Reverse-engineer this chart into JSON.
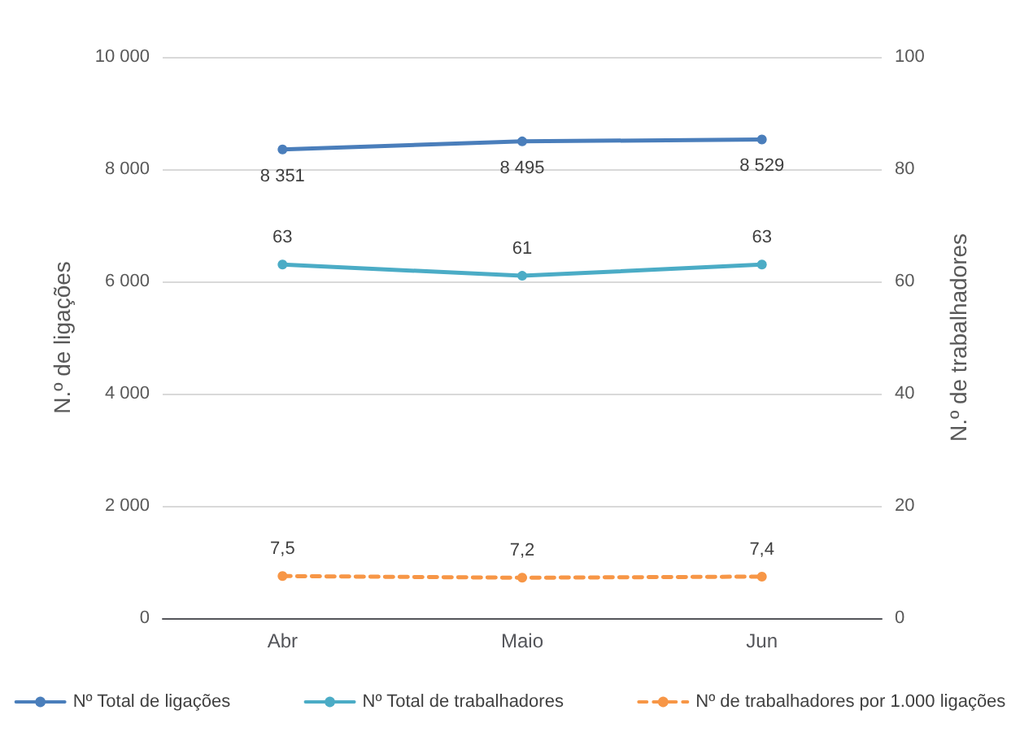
{
  "chart_data": {
    "type": "line",
    "categories": [
      "Abr",
      "Maio",
      "Jun"
    ],
    "ylabel": "N.º de ligações",
    "y2label": "N.º de trabalhadores",
    "ylim": [
      0,
      10000
    ],
    "yticks": [
      {
        "value": 0,
        "label": "0"
      },
      {
        "value": 2000,
        "label": "2 000"
      },
      {
        "value": 4000,
        "label": "4 000"
      },
      {
        "value": 6000,
        "label": "6 000"
      },
      {
        "value": 8000,
        "label": "8 000"
      },
      {
        "value": 10000,
        "label": "10 000"
      }
    ],
    "y2lim": [
      0,
      100
    ],
    "y2ticks": [
      0,
      20,
      40,
      60,
      80,
      100
    ],
    "grid": "y",
    "legend": "bottom",
    "marker": "circle",
    "series": [
      {
        "name": "Nº Total de ligações",
        "color": "#4a7ebb",
        "values": [
          8351,
          8495,
          8529
        ],
        "value_labels": [
          "8 351",
          "8 495",
          "8 529"
        ],
        "line_style": "solid"
      },
      {
        "name": "Nº Total de trabalhadores",
        "color": "#4bacc6",
        "values": [
          63,
          61,
          63
        ],
        "value_labels": [
          "63",
          "61",
          "63"
        ],
        "axis": "y2",
        "line_style": "solid"
      },
      {
        "name": "Nº de trabalhadores por 1.000 ligações",
        "color": "#f79646",
        "values": [
          7.5,
          7.2,
          7.4
        ],
        "value_labels": [
          "7,5",
          "7,2",
          "7,4"
        ],
        "axis": "y2",
        "line_style": "dashed"
      }
    ]
  }
}
